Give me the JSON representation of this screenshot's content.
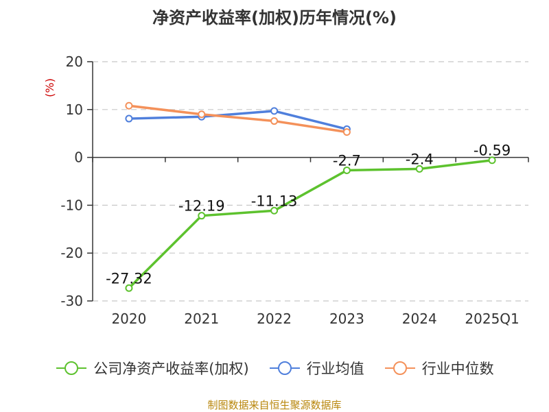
{
  "title": "净资产收益率(加权)历年情况(%)",
  "source_note": "制图数据来自恒生聚源数据库",
  "chart_data": {
    "type": "line",
    "title": "净资产收益率(加权)历年情况(%)",
    "ylabel": "(%)",
    "xlabel": "",
    "categories": [
      "2020",
      "2021",
      "2022",
      "2023",
      "2024",
      "2025Q1"
    ],
    "ylim": [
      -30,
      20
    ],
    "yticks": [
      20,
      10,
      0,
      -10,
      -20,
      -30
    ],
    "grid": true,
    "legend_position": "bottom",
    "series": [
      {
        "name": "公司净资产收益率(加权)",
        "color": "#5dc22e",
        "values": [
          -27.32,
          -12.19,
          -11.13,
          -2.7,
          -2.4,
          -0.59
        ],
        "data_labels": [
          "-27.32",
          "-12.19",
          "-11.13",
          "-2.7",
          "-2.4",
          "-0.59"
        ]
      },
      {
        "name": "行业均值",
        "color": "#4f7fdc",
        "values": [
          8.1,
          8.5,
          9.7,
          5.9,
          null,
          null
        ],
        "data_labels": []
      },
      {
        "name": "行业中位数",
        "color": "#f4915a",
        "values": [
          10.8,
          9.0,
          7.6,
          5.3,
          null,
          null
        ],
        "data_labels": []
      }
    ]
  }
}
